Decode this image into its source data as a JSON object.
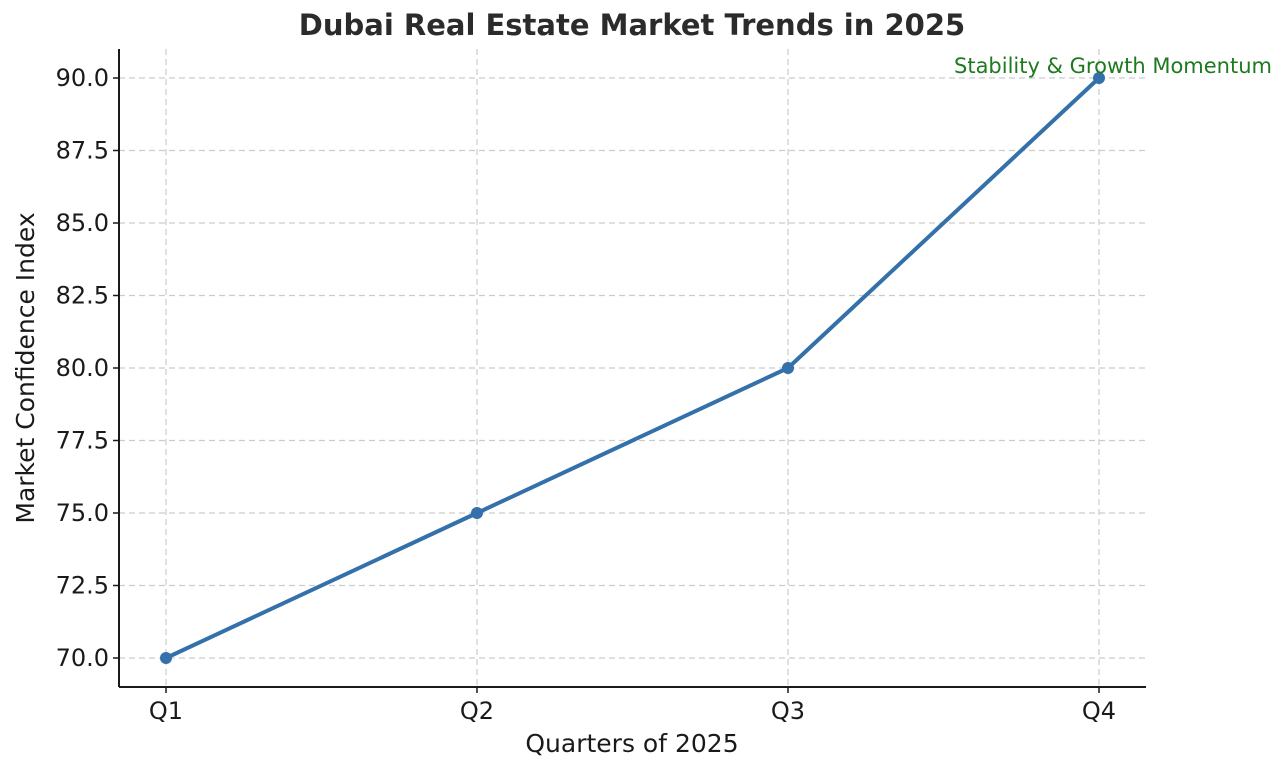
{
  "chart_data": {
    "type": "line",
    "title": "Dubai Real Estate Market Trends in 2025",
    "xlabel": "Quarters of 2025",
    "ylabel": "Market Confidence Index",
    "categories": [
      "Q1",
      "Q2",
      "Q3",
      "Q4"
    ],
    "series": [
      {
        "values": [
          70,
          75,
          80,
          90
        ],
        "color": "#3470a9",
        "marker": "circle"
      }
    ],
    "ylim": [
      69,
      91
    ],
    "yticks": [
      "70.0",
      "72.5",
      "75.0",
      "77.5",
      "80.0",
      "82.5",
      "85.0",
      "87.5",
      "90.0"
    ],
    "ytick_values": [
      70,
      72.5,
      75,
      77.5,
      80,
      82.5,
      85,
      87.5,
      90
    ],
    "grid": true,
    "annotation": {
      "text": "Stability & Growth Momentum",
      "category": "Q4",
      "value": 90,
      "color": "#1e7a1e"
    }
  }
}
